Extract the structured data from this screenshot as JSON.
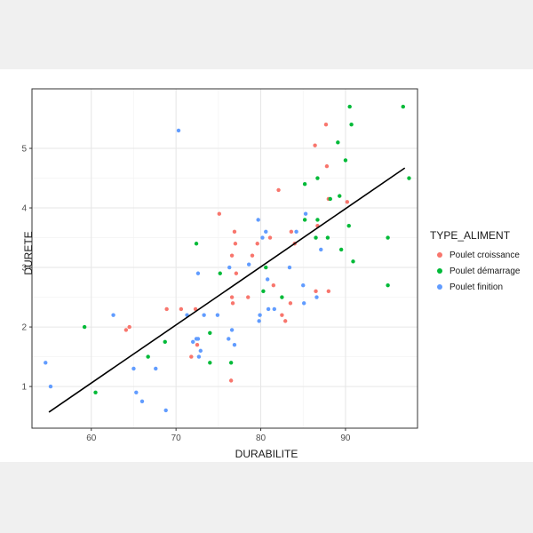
{
  "chart_data": {
    "type": "scatter",
    "xlabel": "DURABILITE",
    "ylabel": "DURETE",
    "xlim": [
      53,
      98.5
    ],
    "ylim": [
      0.3,
      6.0
    ],
    "xticks": [
      60,
      70,
      80,
      90
    ],
    "yticks": [
      1,
      2,
      3,
      4,
      5
    ],
    "grid": true,
    "legend_title": "TYPE_ALIMENT",
    "legend_position": "right",
    "series": [
      {
        "name": "Poulet croissance",
        "color": "#F8766D",
        "points": [
          [
            87.7,
            5.4
          ],
          [
            86.4,
            5.05
          ],
          [
            87.8,
            4.7
          ],
          [
            82.1,
            4.3
          ],
          [
            90.2,
            4.1
          ],
          [
            75.1,
            3.9
          ],
          [
            88.0,
            4.15
          ],
          [
            86.7,
            3.7
          ],
          [
            83.6,
            3.6
          ],
          [
            76.9,
            3.6
          ],
          [
            77.0,
            3.4
          ],
          [
            79.6,
            3.4
          ],
          [
            84.0,
            3.4
          ],
          [
            81.1,
            3.5
          ],
          [
            79.0,
            3.2
          ],
          [
            76.6,
            3.2
          ],
          [
            77.1,
            2.9
          ],
          [
            81.5,
            2.7
          ],
          [
            86.5,
            2.6
          ],
          [
            88.0,
            2.6
          ],
          [
            76.6,
            2.5
          ],
          [
            78.5,
            2.5
          ],
          [
            76.7,
            2.4
          ],
          [
            83.5,
            2.4
          ],
          [
            82.5,
            2.2
          ],
          [
            82.9,
            2.1
          ],
          [
            68.9,
            2.3
          ],
          [
            70.6,
            2.3
          ],
          [
            72.3,
            2.3
          ],
          [
            64.1,
            1.95
          ],
          [
            64.5,
            2.0
          ],
          [
            72.5,
            1.7
          ],
          [
            71.8,
            1.5
          ],
          [
            76.5,
            1.1
          ]
        ]
      },
      {
        "name": "Poulet démarrage",
        "color": "#00BA38",
        "points": [
          [
            90.5,
            5.7
          ],
          [
            96.8,
            5.7
          ],
          [
            90.7,
            5.4
          ],
          [
            89.1,
            5.1
          ],
          [
            90.0,
            4.8
          ],
          [
            86.7,
            4.5
          ],
          [
            97.5,
            4.5
          ],
          [
            85.2,
            4.4
          ],
          [
            88.2,
            4.15
          ],
          [
            89.3,
            4.2
          ],
          [
            85.2,
            3.8
          ],
          [
            86.7,
            3.8
          ],
          [
            90.4,
            3.7
          ],
          [
            87.9,
            3.5
          ],
          [
            95.0,
            3.5
          ],
          [
            72.4,
            3.4
          ],
          [
            86.5,
            3.5
          ],
          [
            89.5,
            3.3
          ],
          [
            90.9,
            3.1
          ],
          [
            80.6,
            3.0
          ],
          [
            75.2,
            2.9
          ],
          [
            80.3,
            2.6
          ],
          [
            82.5,
            2.5
          ],
          [
            95.0,
            2.7
          ],
          [
            59.2,
            2.0
          ],
          [
            74.0,
            1.9
          ],
          [
            68.7,
            1.75
          ],
          [
            66.7,
            1.5
          ],
          [
            74.0,
            1.4
          ],
          [
            76.5,
            1.4
          ],
          [
            60.5,
            0.9
          ]
        ]
      },
      {
        "name": "Poulet finition",
        "color": "#619CFF",
        "points": [
          [
            70.3,
            5.3
          ],
          [
            79.7,
            3.8
          ],
          [
            80.6,
            3.6
          ],
          [
            80.2,
            3.5
          ],
          [
            85.3,
            3.9
          ],
          [
            84.2,
            3.6
          ],
          [
            87.1,
            3.3
          ],
          [
            76.3,
            3.0
          ],
          [
            78.6,
            3.05
          ],
          [
            80.8,
            2.8
          ],
          [
            72.6,
            2.9
          ],
          [
            85.0,
            2.7
          ],
          [
            83.4,
            3.0
          ],
          [
            86.6,
            2.5
          ],
          [
            85.1,
            2.4
          ],
          [
            80.9,
            2.3
          ],
          [
            79.9,
            2.2
          ],
          [
            79.8,
            2.1
          ],
          [
            81.6,
            2.3
          ],
          [
            71.3,
            2.2
          ],
          [
            73.3,
            2.2
          ],
          [
            74.9,
            2.2
          ],
          [
            76.6,
            1.95
          ],
          [
            62.6,
            2.2
          ],
          [
            72.4,
            1.8
          ],
          [
            72.6,
            1.8
          ],
          [
            76.2,
            1.8
          ],
          [
            76.9,
            1.7
          ],
          [
            72.0,
            1.75
          ],
          [
            72.9,
            1.6
          ],
          [
            72.7,
            1.5
          ],
          [
            65.0,
            1.3
          ],
          [
            67.6,
            1.3
          ],
          [
            54.6,
            1.4
          ],
          [
            55.2,
            1.0
          ],
          [
            65.3,
            0.9
          ],
          [
            66.0,
            0.75
          ],
          [
            68.8,
            0.6
          ]
        ]
      }
    ],
    "trendline": {
      "x": [
        55.0,
        97.0
      ],
      "y": [
        0.57,
        4.67
      ],
      "color": "#000000"
    }
  }
}
